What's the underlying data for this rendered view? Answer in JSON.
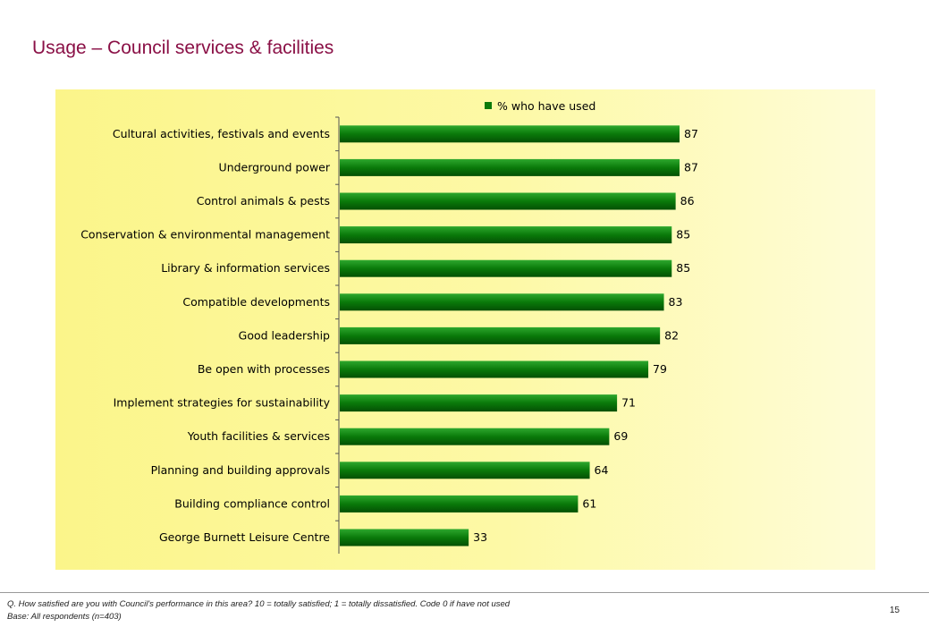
{
  "page": {
    "title": "Usage – Council services & facilities",
    "footnote_question": "Q. How satisfied are you with Council's performance in this area?  10 = totally satisfied; 1 = totally dissatisfied.   Code 0 if have not used",
    "footnote_base": "Base: All respondents (n=403)",
    "page_number": "15"
  },
  "chart_data": {
    "type": "bar",
    "orientation": "horizontal",
    "legend_position": "top",
    "grid": false,
    "xlim": [
      0,
      100
    ],
    "categories": [
      "Cultural activities, festivals and events",
      "Underground power",
      "Control animals & pests",
      "Conservation & environmental management",
      "Library & information services",
      "Compatible developments",
      "Good leadership",
      "Be open with processes",
      "Implement strategies for sustainability",
      "Youth facilities & services",
      "Planning and building approvals",
      "Building compliance control",
      "George Burnett Leisure Centre"
    ],
    "series": [
      {
        "name": "% who have used",
        "values": [
          87,
          87,
          86,
          85,
          85,
          83,
          82,
          79,
          71,
          69,
          64,
          61,
          33
        ]
      }
    ],
    "colors": {
      "bar": "#0a7a0a",
      "bar_dark": "#045004",
      "bar_light": "#2ea82e",
      "axis": "#555555"
    }
  }
}
